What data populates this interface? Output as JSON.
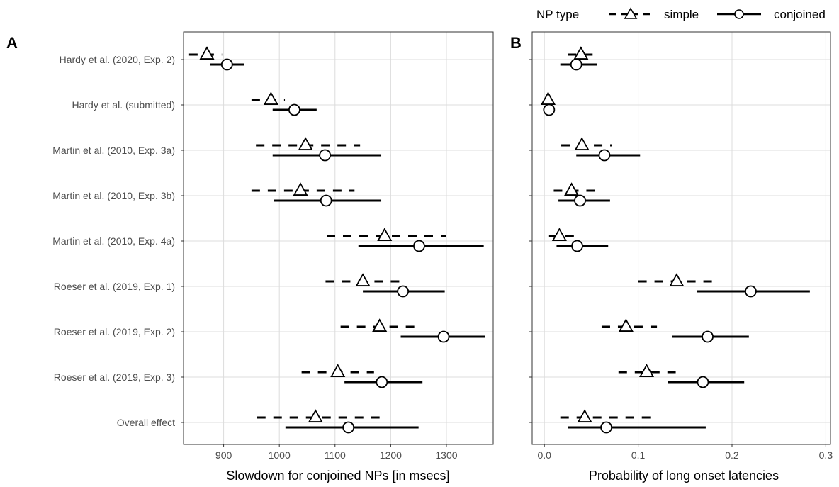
{
  "legend": {
    "title": "NP type",
    "items": [
      {
        "label": "simple",
        "shape": "triangle",
        "linetype": "dashed"
      },
      {
        "label": "conjoined",
        "shape": "circle",
        "linetype": "solid"
      }
    ]
  },
  "studies": [
    "Hardy et al. (2020, Exp. 2)",
    "Hardy et al. (submitted)",
    "Martin et al. (2010, Exp. 3a)",
    "Martin et al. (2010, Exp. 3b)",
    "Martin et al. (2010, Exp. 4a)",
    "Roeser et al. (2019, Exp. 1)",
    "Roeser et al. (2019, Exp. 2)",
    "Roeser et al. (2019, Exp. 3)",
    "Overall effect"
  ],
  "chart_data": [
    {
      "panel": "A",
      "type": "scatter",
      "xlabel": "Slowdown for conjoined NPs [in msecs]",
      "xlim": [
        828,
        1384
      ],
      "xticks": [
        900,
        1000,
        1100,
        1200,
        1300
      ],
      "xtick_labels": [
        "900",
        "1000",
        "1100",
        "1200",
        "1300"
      ],
      "grid": true,
      "series": [
        {
          "name": "simple",
          "values": [
            {
              "est": 870,
              "lo": 838,
              "hi": 897
            },
            {
              "est": 985,
              "lo": 950,
              "hi": 1010
            },
            {
              "est": 1047,
              "lo": 958,
              "hi": 1145
            },
            {
              "est": 1038,
              "lo": 950,
              "hi": 1135
            },
            {
              "est": 1189,
              "lo": 1085,
              "hi": 1300
            },
            {
              "est": 1150,
              "lo": 1083,
              "hi": 1220
            },
            {
              "est": 1180,
              "lo": 1110,
              "hi": 1250
            },
            {
              "est": 1105,
              "lo": 1040,
              "hi": 1170
            },
            {
              "est": 1065,
              "lo": 960,
              "hi": 1180
            }
          ]
        },
        {
          "name": "conjoined",
          "values": [
            {
              "est": 906,
              "lo": 876,
              "hi": 937
            },
            {
              "est": 1027,
              "lo": 988,
              "hi": 1067
            },
            {
              "est": 1082,
              "lo": 988,
              "hi": 1183
            },
            {
              "est": 1084,
              "lo": 990,
              "hi": 1183
            },
            {
              "est": 1251,
              "lo": 1142,
              "hi": 1367
            },
            {
              "est": 1222,
              "lo": 1150,
              "hi": 1297
            },
            {
              "est": 1295,
              "lo": 1218,
              "hi": 1370
            },
            {
              "est": 1184,
              "lo": 1117,
              "hi": 1257
            },
            {
              "est": 1124,
              "lo": 1011,
              "hi": 1250
            }
          ]
        }
      ]
    },
    {
      "panel": "B",
      "type": "scatter",
      "xlabel": "Probability of long onset latencies",
      "xlim": [
        -0.013,
        0.305
      ],
      "xticks": [
        0.0,
        0.1,
        0.2,
        0.3
      ],
      "xtick_labels": [
        "0.0",
        "0.1",
        "0.2",
        "0.3"
      ],
      "grid": true,
      "series": [
        {
          "name": "simple",
          "values": [
            {
              "est": 0.039,
              "lo": 0.025,
              "hi": 0.055
            },
            {
              "est": 0.004,
              "lo": 0.003,
              "hi": 0.006
            },
            {
              "est": 0.04,
              "lo": 0.018,
              "hi": 0.072
            },
            {
              "est": 0.029,
              "lo": 0.01,
              "hi": 0.062
            },
            {
              "est": 0.016,
              "lo": 0.005,
              "hi": 0.038
            },
            {
              "est": 0.141,
              "lo": 0.1,
              "hi": 0.183
            },
            {
              "est": 0.087,
              "lo": 0.061,
              "hi": 0.12
            },
            {
              "est": 0.109,
              "lo": 0.079,
              "hi": 0.14
            },
            {
              "est": 0.043,
              "lo": 0.017,
              "hi": 0.118
            }
          ]
        },
        {
          "name": "conjoined",
          "values": [
            {
              "est": 0.034,
              "lo": 0.017,
              "hi": 0.056
            },
            {
              "est": 0.005,
              "lo": 0.004,
              "hi": 0.006
            },
            {
              "est": 0.064,
              "lo": 0.034,
              "hi": 0.102
            },
            {
              "est": 0.038,
              "lo": 0.015,
              "hi": 0.07
            },
            {
              "est": 0.035,
              "lo": 0.013,
              "hi": 0.068
            },
            {
              "est": 0.22,
              "lo": 0.163,
              "hi": 0.283
            },
            {
              "est": 0.174,
              "lo": 0.136,
              "hi": 0.218
            },
            {
              "est": 0.169,
              "lo": 0.132,
              "hi": 0.213
            },
            {
              "est": 0.066,
              "lo": 0.025,
              "hi": 0.172
            }
          ]
        }
      ]
    }
  ]
}
